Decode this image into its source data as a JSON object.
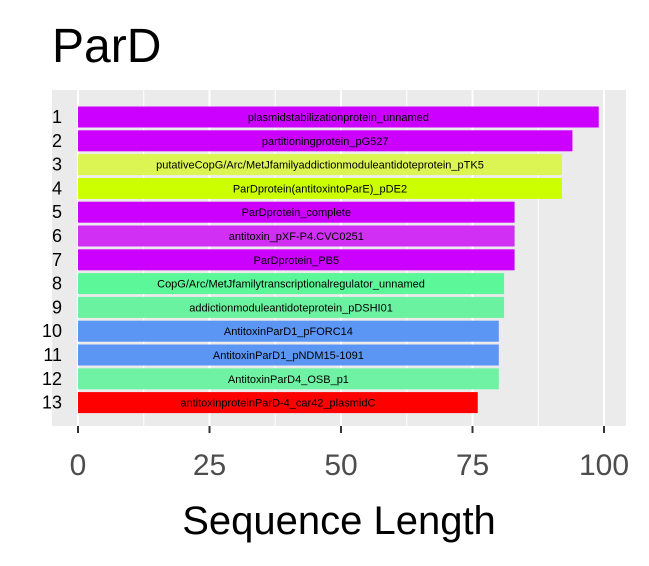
{
  "chart_data": {
    "type": "bar",
    "orientation": "horizontal",
    "title": "ParD",
    "xlabel": "Sequence Length",
    "ylabel": "",
    "xlim": [
      0,
      100
    ],
    "xticks": [
      "0",
      "25",
      "50",
      "75",
      "100"
    ],
    "grid": true,
    "legend": "none",
    "categories": [
      "1",
      "2",
      "3",
      "4",
      "5",
      "6",
      "7",
      "8",
      "9",
      "10",
      "11",
      "12",
      "13"
    ],
    "bars": [
      {
        "rank": "1",
        "label": "plasmidstabilizationprotein_unnamed",
        "value": 99,
        "color": "#cc00ff"
      },
      {
        "rank": "2",
        "label": "partitioningprotein_pG527",
        "value": 94,
        "color": "#cc00ff"
      },
      {
        "rank": "3",
        "label": "putativeCopG/Arc/MetJfamilyaddictionmoduleantidoteprotein_pTK5",
        "value": 92,
        "color": "#ddf553"
      },
      {
        "rank": "4",
        "label": "ParDprotein(antitoxintoParE)_pDE2",
        "value": 92,
        "color": "#ccff00"
      },
      {
        "rank": "5",
        "label": "ParDprotein_complete",
        "value": 83,
        "color": "#cc00ff"
      },
      {
        "rank": "6",
        "label": "antitoxin_pXF-P4.CVC0251",
        "value": 83,
        "color": "#d22ff5"
      },
      {
        "rank": "7",
        "label": "ParDprotein_PB5",
        "value": 83,
        "color": "#cc00ff"
      },
      {
        "rank": "8",
        "label": "CopG/Arc/MetJfamilytranscriptionalregulator_unnamed",
        "value": 81,
        "color": "#5cf799"
      },
      {
        "rank": "9",
        "label": "addictionmoduleantidoteprotein_pDSHI01",
        "value": 81,
        "color": "#6bf2a0"
      },
      {
        "rank": "10",
        "label": "AntitoxinParD1_pFORC14",
        "value": 80,
        "color": "#5b96f5"
      },
      {
        "rank": "11",
        "label": "AntitoxinParD1_pNDM15-1091",
        "value": 80,
        "color": "#5b96f5"
      },
      {
        "rank": "12",
        "label": "AntitoxinParD4_OSB_p1",
        "value": 80,
        "color": "#70f2a4"
      },
      {
        "rank": "13",
        "label": "antitoxinproteinParD-4_car42_plasmidC",
        "value": 76,
        "color": "#ff0000"
      }
    ]
  }
}
